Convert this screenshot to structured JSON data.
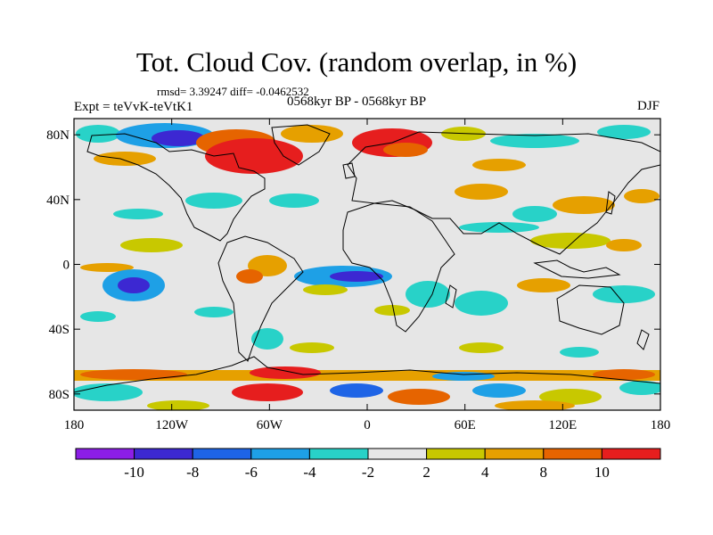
{
  "header": {
    "title": "Tot. Cloud Cov. (random overlap, in %)",
    "stats": "rmsd= 3.39247 diff= -0.0462532",
    "experiment": "Expt = teVvK-teVtK1",
    "period": "0568kyr BP - 0568kyr BP",
    "season": "DJF"
  },
  "map": {
    "lon_labels": [
      "180",
      "120W",
      "60W",
      "0",
      "60E",
      "120E",
      "180"
    ],
    "lat_labels": [
      "80N",
      "40N",
      "0",
      "40S",
      "80S"
    ],
    "lon_values": [
      -180,
      -120,
      -60,
      0,
      60,
      120,
      180
    ],
    "lat_values": [
      80,
      40,
      0,
      -40,
      -80
    ],
    "lon_range": [
      -180,
      180
    ],
    "lat_range": [
      -90,
      90
    ]
  },
  "colorbar": {
    "colors": [
      "#8c1ee6",
      "#3c28d2",
      "#1e64e6",
      "#1ea0e6",
      "#28d2c8",
      "#e6e6e6",
      "#c8c800",
      "#e6a000",
      "#e66400",
      "#e61e1e"
    ],
    "tick_labels": [
      "-10",
      "-8",
      "-6",
      "-4",
      "-2",
      "2",
      "4",
      "8",
      "10"
    ]
  }
}
